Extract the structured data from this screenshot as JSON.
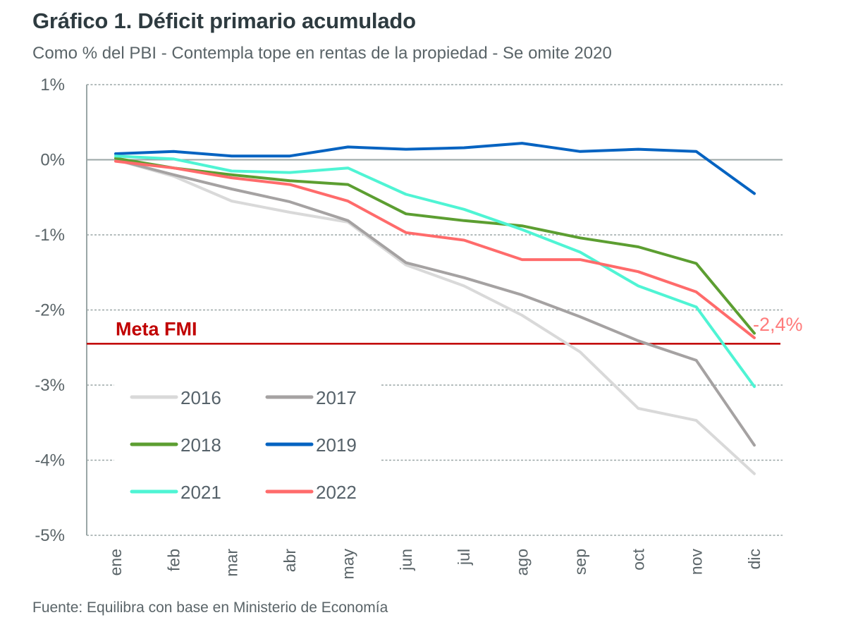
{
  "header": {
    "title": "Gráfico 1. Déficit primario acumulado",
    "subtitle": "Como % del PBI - Contempla tope en rentas de la propiedad - Se omite 2020"
  },
  "footer": {
    "source": "Fuente: Equilibra con base en Ministerio de Economía"
  },
  "chart_data": {
    "type": "line",
    "title": "Gráfico 1. Déficit primario acumulado",
    "subtitle": "Como % del PBI - Contempla tope en rentas de la propiedad - Se omite 2020",
    "xlabel": "",
    "ylabel": "",
    "categories": [
      "ene",
      "feb",
      "mar",
      "abr",
      "may",
      "jun",
      "jul",
      "ago",
      "sep",
      "oct",
      "nov",
      "dic"
    ],
    "ylim": [
      -5,
      1
    ],
    "yticks": [
      1,
      0,
      -1,
      -2,
      -3,
      -4,
      -5
    ],
    "ytick_labels": [
      "1%",
      "0%",
      "-1%",
      "-2%",
      "-3%",
      "-4%",
      "-5%"
    ],
    "grid": true,
    "legend_position": "bottom-left (inside plot)",
    "series": [
      {
        "name": "2016",
        "color": "#d9d9d9",
        "values": [
          0.0,
          -0.22,
          -0.55,
          -0.7,
          -0.83,
          -1.4,
          -1.68,
          -2.07,
          -2.56,
          -3.31,
          -3.47,
          -4.18
        ]
      },
      {
        "name": "2017",
        "color": "#a5a2a2",
        "values": [
          0.0,
          -0.2,
          -0.39,
          -0.56,
          -0.81,
          -1.37,
          -1.57,
          -1.8,
          -2.09,
          -2.41,
          -2.67,
          -3.8
        ]
      },
      {
        "name": "2018",
        "color": "#5c9e31",
        "values": [
          0.02,
          -0.11,
          -0.2,
          -0.28,
          -0.33,
          -0.72,
          -0.81,
          -0.88,
          -1.04,
          -1.16,
          -1.38,
          -2.31
        ]
      },
      {
        "name": "2019",
        "color": "#0563c1",
        "values": [
          0.08,
          0.11,
          0.05,
          0.05,
          0.17,
          0.14,
          0.16,
          0.22,
          0.11,
          0.14,
          0.11,
          -0.45
        ]
      },
      {
        "name": "2021",
        "color": "#4ff4d4",
        "values": [
          0.05,
          0.01,
          -0.15,
          -0.17,
          -0.11,
          -0.46,
          -0.66,
          -0.93,
          -1.23,
          -1.68,
          -1.96,
          -3.02
        ]
      },
      {
        "name": "2022",
        "color": "#ff6b6b",
        "values": [
          -0.02,
          -0.11,
          -0.24,
          -0.33,
          -0.55,
          -0.97,
          -1.07,
          -1.33,
          -1.33,
          -1.49,
          -1.76,
          -2.37
        ]
      }
    ],
    "reference_line": {
      "label": "Meta FMI",
      "value": -2.45,
      "color": "#c00000"
    },
    "annotations": [
      {
        "text": "-2,4%",
        "series": "2022",
        "category": "dic",
        "color": "#ff7b7b"
      }
    ]
  }
}
